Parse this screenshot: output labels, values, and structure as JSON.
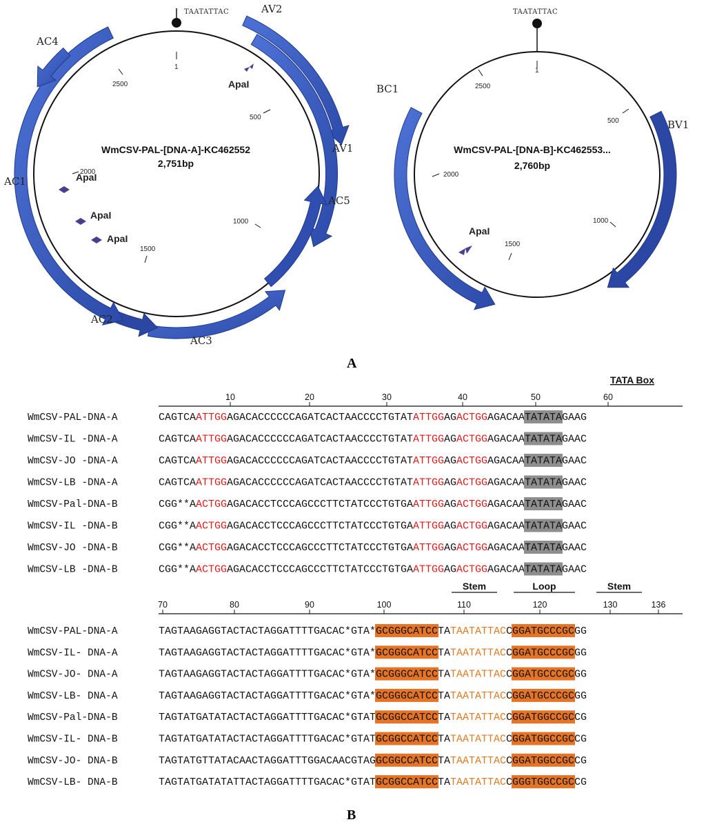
{
  "panel_a": {
    "label": "A",
    "nonanucleotide": "TAATATTAC",
    "dna_a": {
      "name": "WmCSV-PAL-[DNA-A]-KC462552",
      "size": "2,751bp",
      "ticks": [
        "1",
        "500",
        "1000",
        "1500",
        "2000",
        "2500"
      ],
      "genes": [
        "AV2",
        "AV1",
        "AC5",
        "AC3",
        "AC2",
        "AC1",
        "AC4"
      ],
      "sites": [
        "ApaI",
        "ApaI",
        "ApaI",
        "ApaI"
      ]
    },
    "dna_b": {
      "name": "WmCSV-PAL-[DNA-B]-KC462553...",
      "size": "2,760bp",
      "ticks": [
        "1",
        "500",
        "1000",
        "1500",
        "2000",
        "2500"
      ],
      "genes": [
        "BV1",
        "BC1"
      ],
      "sites": [
        "ApaI"
      ]
    },
    "colors": {
      "arrow_fill": "#3b5fc2",
      "arrow_dark": "#253f9a",
      "circle": "#111111",
      "site": "#4a3f8f"
    }
  },
  "panel_b": {
    "label": "B",
    "block1": {
      "ruler_numbers": [
        "10",
        "20",
        "30",
        "40",
        "50",
        "60"
      ],
      "region": "TATA Box",
      "rows": [
        {
          "name": "WmCSV-PAL-DNA-A",
          "segments": [
            [
              "CAGTCA",
              "k"
            ],
            [
              "ATTGG",
              "r"
            ],
            [
              "AGACACCCCCCAGATCACTAACCCCTGTAT",
              "k"
            ],
            [
              "ATTGG",
              "r"
            ],
            [
              "AG",
              "k"
            ],
            [
              "ACTGG",
              "r"
            ],
            [
              "AGACAA",
              "k"
            ],
            [
              "TATATA",
              "g"
            ],
            [
              "GAAG",
              "k"
            ]
          ]
        },
        {
          "name": "WmCSV-IL -DNA-A",
          "segments": [
            [
              "CAGTCA",
              "k"
            ],
            [
              "ATTGG",
              "r"
            ],
            [
              "AGACACCCCCCAGATCACTAACCCCTGTAT",
              "k"
            ],
            [
              "ATTGG",
              "r"
            ],
            [
              "AG",
              "k"
            ],
            [
              "ACTGG",
              "r"
            ],
            [
              "AGACAA",
              "k"
            ],
            [
              "TATATA",
              "g"
            ],
            [
              "GAAC",
              "k"
            ]
          ]
        },
        {
          "name": "WmCSV-JO -DNA-A",
          "segments": [
            [
              "CAGTCA",
              "k"
            ],
            [
              "ATTGG",
              "r"
            ],
            [
              "AGACACCCCCCAGATCACTAACCCCTGTAT",
              "k"
            ],
            [
              "ATTGG",
              "r"
            ],
            [
              "AG",
              "k"
            ],
            [
              "ACTGG",
              "r"
            ],
            [
              "AGACAA",
              "k"
            ],
            [
              "TATATA",
              "g"
            ],
            [
              "GAAC",
              "k"
            ]
          ]
        },
        {
          "name": "WmCSV-LB -DNA-A",
          "segments": [
            [
              "CAGTCA",
              "k"
            ],
            [
              "ATTGG",
              "r"
            ],
            [
              "AGACACCCCCCAGATCACTAACCCCTGTAT",
              "k"
            ],
            [
              "ATTGG",
              "r"
            ],
            [
              "AG",
              "k"
            ],
            [
              "ACTGG",
              "r"
            ],
            [
              "AGACAA",
              "k"
            ],
            [
              "TATATA",
              "g"
            ],
            [
              "GAAC",
              "k"
            ]
          ]
        },
        {
          "name": "WmCSV-Pal-DNA-B",
          "segments": [
            [
              "CGG**A",
              "k"
            ],
            [
              "ACTGG",
              "r"
            ],
            [
              "AGACACCTCCCAGCCCTTCTATCCCTGTGA",
              "k"
            ],
            [
              "ATTGG",
              "r"
            ],
            [
              "AG",
              "k"
            ],
            [
              "ACTGG",
              "r"
            ],
            [
              "AGACAA",
              "k"
            ],
            [
              "TATATA",
              "g"
            ],
            [
              "GAAC",
              "k"
            ]
          ]
        },
        {
          "name": "WmCSV-IL -DNA-B",
          "segments": [
            [
              "CGG**A",
              "k"
            ],
            [
              "ACTGG",
              "r"
            ],
            [
              "AGACACCTCCCAGCCCTTCTATCCCTGTGA",
              "k"
            ],
            [
              "ATTGG",
              "r"
            ],
            [
              "AG",
              "k"
            ],
            [
              "ACTGG",
              "r"
            ],
            [
              "AGACAA",
              "k"
            ],
            [
              "TATATA",
              "g"
            ],
            [
              "GAAC",
              "k"
            ]
          ]
        },
        {
          "name": "WmCSV-JO -DNA-B",
          "segments": [
            [
              "CGG**A",
              "k"
            ],
            [
              "ACTGG",
              "r"
            ],
            [
              "AGACACCTCCCAGCCCTTCTATCCCTGTGA",
              "k"
            ],
            [
              "ATTGG",
              "r"
            ],
            [
              "AG",
              "k"
            ],
            [
              "ACTGG",
              "r"
            ],
            [
              "AGACAA",
              "k"
            ],
            [
              "TATATA",
              "g"
            ],
            [
              "GAAC",
              "k"
            ]
          ]
        },
        {
          "name": "WmCSV-LB -DNA-B",
          "segments": [
            [
              "CGG**A",
              "k"
            ],
            [
              "ACTGG",
              "r"
            ],
            [
              "AGACACCTCCCAGCCCTTCTATCCCTGTGA",
              "k"
            ],
            [
              "ATTGG",
              "r"
            ],
            [
              "AG",
              "k"
            ],
            [
              "ACTGG",
              "r"
            ],
            [
              "AGACAA",
              "k"
            ],
            [
              "TATATA",
              "g"
            ],
            [
              "GAAC",
              "k"
            ]
          ]
        }
      ]
    },
    "block2": {
      "ruler_numbers": [
        "70",
        "80",
        "90",
        "100",
        "110",
        "120",
        "130",
        "136"
      ],
      "regions": [
        "Stem",
        "Loop",
        "Stem"
      ],
      "rows": [
        {
          "name": "WmCSV-PAL-DNA-A",
          "segments": [
            [
              "TAGTAAGAGGTACTACTAGGATTTTGACAC*GTA*",
              "k"
            ],
            [
              "GCGGGCATCC",
              "o"
            ],
            [
              "TA",
              "k"
            ],
            [
              "TAATATTAC",
              "t"
            ],
            [
              "C",
              "k"
            ],
            [
              "GGATGCCCGC",
              "o"
            ],
            [
              "GG",
              "k"
            ]
          ]
        },
        {
          "name": "WmCSV-IL- DNA-A",
          "segments": [
            [
              "TAGTAAGAGGTACTACTAGGATTTTGACAC*GTA*",
              "k"
            ],
            [
              "GCGGGCATCC",
              "o"
            ],
            [
              "TA",
              "k"
            ],
            [
              "TAATATTAC",
              "t"
            ],
            [
              "C",
              "k"
            ],
            [
              "GGATGCCCGC",
              "o"
            ],
            [
              "GG",
              "k"
            ]
          ]
        },
        {
          "name": "WmCSV-JO- DNA-A",
          "segments": [
            [
              "TAGTAAGAGGTACTACTAGGATTTTGACAC*GTA*",
              "k"
            ],
            [
              "GCGGGCATCC",
              "o"
            ],
            [
              "TA",
              "k"
            ],
            [
              "TAATATTAC",
              "t"
            ],
            [
              "C",
              "k"
            ],
            [
              "GGATGCCCGC",
              "o"
            ],
            [
              "GG",
              "k"
            ]
          ]
        },
        {
          "name": "WmCSV-LB- DNA-A",
          "segments": [
            [
              "TAGTAAGAGGTACTACTAGGATTTTGACAC*GTA*",
              "k"
            ],
            [
              "GCGGGCATCC",
              "o"
            ],
            [
              "TA",
              "k"
            ],
            [
              "TAATATTAC",
              "t"
            ],
            [
              "C",
              "k"
            ],
            [
              "GGATGCCCGC",
              "o"
            ],
            [
              "GG",
              "k"
            ]
          ]
        },
        {
          "name": "WmCSV-Pal-DNA-B",
          "segments": [
            [
              "TAGTATGATATACTACTAGGATTTTGACAC*GTAT",
              "k"
            ],
            [
              "GCGGCCATCC",
              "o"
            ],
            [
              "TA",
              "k"
            ],
            [
              "TAATATTAC",
              "t"
            ],
            [
              "C",
              "k"
            ],
            [
              "GGATGGCCGC",
              "o"
            ],
            [
              "CG",
              "k"
            ]
          ]
        },
        {
          "name": "WmCSV-IL- DNA-B",
          "segments": [
            [
              "TAGTATGATATACTACTAGGATTTTGACAC*GTAT",
              "k"
            ],
            [
              "GCGGCCATCC",
              "o"
            ],
            [
              "TA",
              "k"
            ],
            [
              "TAATATTAC",
              "t"
            ],
            [
              "C",
              "k"
            ],
            [
              "GGATGGCCGC",
              "o"
            ],
            [
              "CG",
              "k"
            ]
          ]
        },
        {
          "name": "WmCSV-JO- DNA-B",
          "segments": [
            [
              "TAGTATGTTATACAACTAGGATTTGGACAACGTAG",
              "k"
            ],
            [
              "GCGGCCATCC",
              "o"
            ],
            [
              "TA",
              "k"
            ],
            [
              "TAATATTAC",
              "t"
            ],
            [
              "C",
              "k"
            ],
            [
              "GGATGGCCGC",
              "o"
            ],
            [
              "CG",
              "k"
            ]
          ]
        },
        {
          "name": "WmCSV-LB- DNA-B",
          "segments": [
            [
              "TAGTATGATATATTACTAGGATTTTGACAC*GTAT",
              "k"
            ],
            [
              "GCGGCCATCC",
              "o"
            ],
            [
              "TA",
              "k"
            ],
            [
              "TAATATTAC",
              "t"
            ],
            [
              "C",
              "k"
            ],
            [
              "GGGTGGCCGC",
              "o"
            ],
            [
              "CG",
              "k"
            ]
          ]
        }
      ]
    },
    "colors": {
      "k": "#111111",
      "r": "#e01b1b",
      "t": "#e07a24",
      "o": "#e57426",
      "g": "#8e8e8e"
    }
  }
}
